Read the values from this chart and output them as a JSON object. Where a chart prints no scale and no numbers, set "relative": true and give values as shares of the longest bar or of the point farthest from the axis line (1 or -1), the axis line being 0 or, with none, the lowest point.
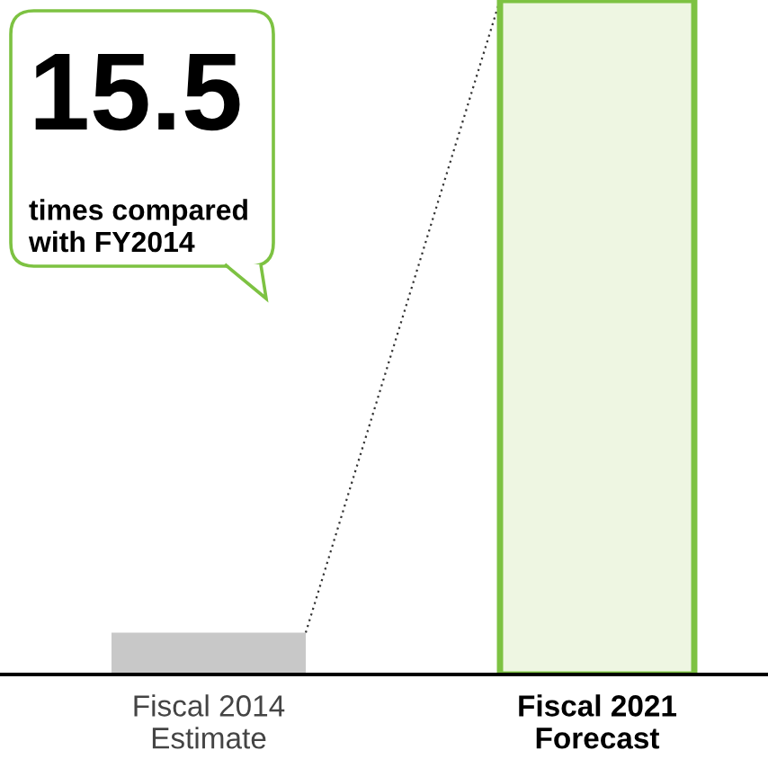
{
  "chart_data": {
    "type": "bar",
    "relative": true,
    "categories": [
      "Fiscal 2014\nEstimate",
      "Fiscal 2021\nForecast"
    ],
    "values": [
      0.062,
      1
    ],
    "colors": [
      "#c8c8c8",
      "#eef6e2"
    ],
    "annotations": [
      "15.5",
      "times compared\nwith FY2014"
    ],
    "grid": false,
    "legend": false
  }
}
